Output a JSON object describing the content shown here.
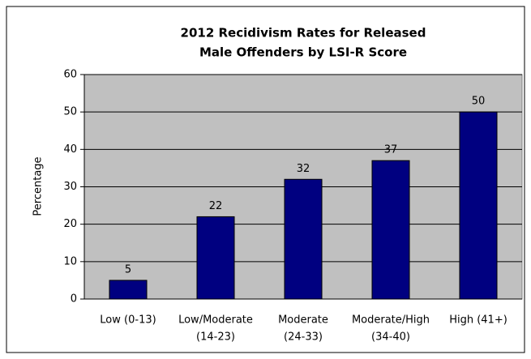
{
  "chart_data": {
    "type": "bar",
    "title": [
      "2012 Recidivism Rates for Released",
      "Male Offenders by LSI-R Score"
    ],
    "y_label": "Percentage",
    "categories": [
      [
        "Low (0-13)"
      ],
      [
        "Low/Moderate",
        "(14-23)"
      ],
      [
        "Moderate",
        "(24-33)"
      ],
      [
        "Moderate/High",
        "(34-40)"
      ],
      [
        "High (41+)"
      ]
    ],
    "values": [
      5,
      22,
      32,
      37,
      50
    ],
    "color": "#000080",
    "ylim": [
      0,
      60
    ],
    "yticks": [
      0,
      10,
      20,
      30,
      40,
      50,
      60
    ],
    "grid": true
  }
}
